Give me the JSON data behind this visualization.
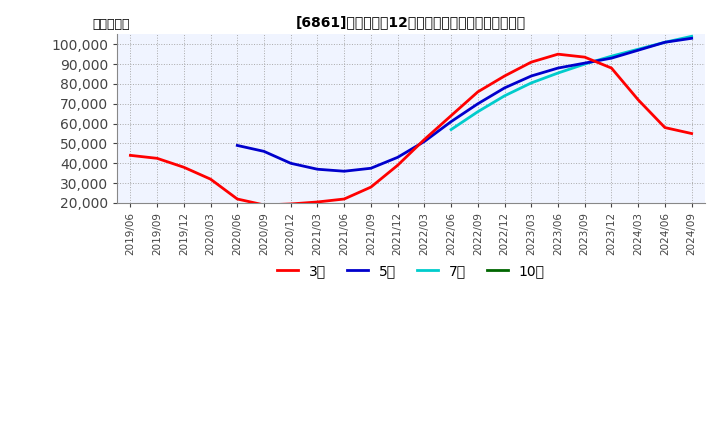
{
  "title": "[桡] 経常利益12か月移動合計の標準偏差の推移",
  "title_display": "[6861]　経常利益12か月移動合計の標準偏差の推移",
  "ylabel": "（百万円）",
  "ylim": [
    20000,
    105000
  ],
  "yticks": [
    20000,
    30000,
    40000,
    50000,
    60000,
    70000,
    80000,
    90000,
    100000
  ],
  "background_color": "#ffffff",
  "plot_bg_color": "#f0f4ff",
  "grid_color": "#aaaaaa",
  "x_labels": [
    "2019/06",
    "2019/09",
    "2019/12",
    "2020/03",
    "2020/06",
    "2020/09",
    "2020/12",
    "2021/03",
    "2021/06",
    "2021/09",
    "2021/12",
    "2022/03",
    "2022/06",
    "2022/09",
    "2022/12",
    "2023/03",
    "2023/06",
    "2023/09",
    "2023/12",
    "2024/03",
    "2024/06",
    "2024/09"
  ],
  "series": {
    "3year": {
      "color": "#ff0000",
      "label": "3年",
      "values": [
        44000,
        42500,
        38000,
        32000,
        22000,
        19000,
        19500,
        20500,
        22000,
        28000,
        39000,
        52000,
        64000,
        76000,
        84000,
        91000,
        95000,
        93500,
        88000,
        72000,
        58000,
        55000
      ]
    },
    "5year": {
      "color": "#0000cc",
      "label": "5年",
      "values": [
        null,
        null,
        null,
        null,
        49000,
        46000,
        40000,
        37000,
        36000,
        37500,
        43000,
        51000,
        61000,
        70000,
        78000,
        84000,
        88000,
        90500,
        93000,
        97000,
        101000,
        103000
      ]
    },
    "7year": {
      "color": "#00cccc",
      "label": "7年",
      "values": [
        null,
        null,
        null,
        null,
        null,
        null,
        null,
        null,
        null,
        null,
        null,
        null,
        57000,
        66000,
        74000,
        80500,
        85500,
        90000,
        94000,
        97500,
        101000,
        104000
      ]
    },
    "10year": {
      "color": "#006600",
      "label": "10年",
      "values": [
        null,
        null,
        null,
        null,
        null,
        null,
        null,
        null,
        null,
        null,
        null,
        null,
        null,
        null,
        null,
        null,
        null,
        null,
        null,
        null,
        null,
        null
      ]
    }
  },
  "legend_entries": [
    "3年",
    "5年",
    "7年",
    "10年"
  ],
  "legend_colors": [
    "#ff0000",
    "#0000cc",
    "#00cccc",
    "#006600"
  ]
}
